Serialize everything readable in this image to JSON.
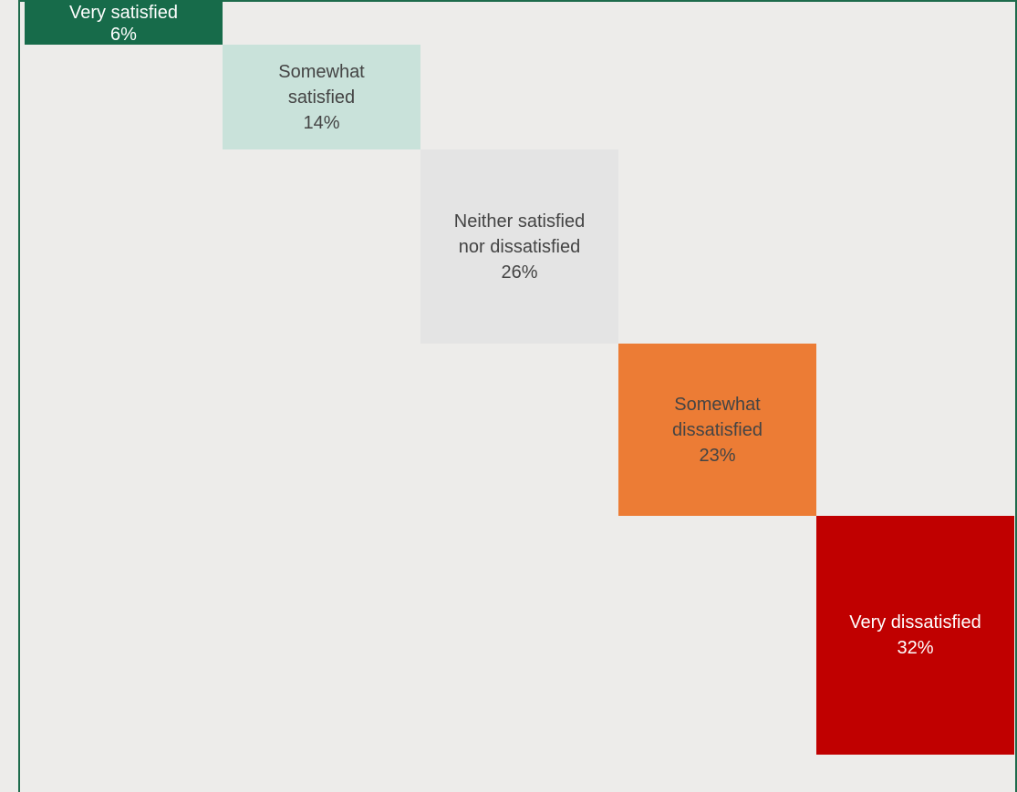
{
  "chart_data": {
    "type": "bar",
    "categories": [
      "Very satisfied",
      "Somewhat satisfied",
      "Neither satisfied nor dissatisfied",
      "Somewhat dissatisfied",
      "Very dissatisfied"
    ],
    "values": [
      6,
      14,
      26,
      23,
      32
    ],
    "unit": "%",
    "labels": [
      "Very satisfied\n6%",
      "Somewhat\nsatisfied\n14%",
      "Neither satisfied\nnor dissatisfied\n26%",
      "Somewhat\ndissatisfied\n23%",
      "Very dissatisfied\n32%"
    ],
    "colors": [
      "#176b4a",
      "#c9e2da",
      "#e4e4e4",
      "#ec7c35",
      "#c00000"
    ],
    "text_colors": [
      "#ffffff",
      "#444444",
      "#444444",
      "#444444",
      "#ffffff"
    ],
    "title": "",
    "xlabel": "",
    "ylabel": "",
    "grid": false,
    "legend": "none"
  }
}
